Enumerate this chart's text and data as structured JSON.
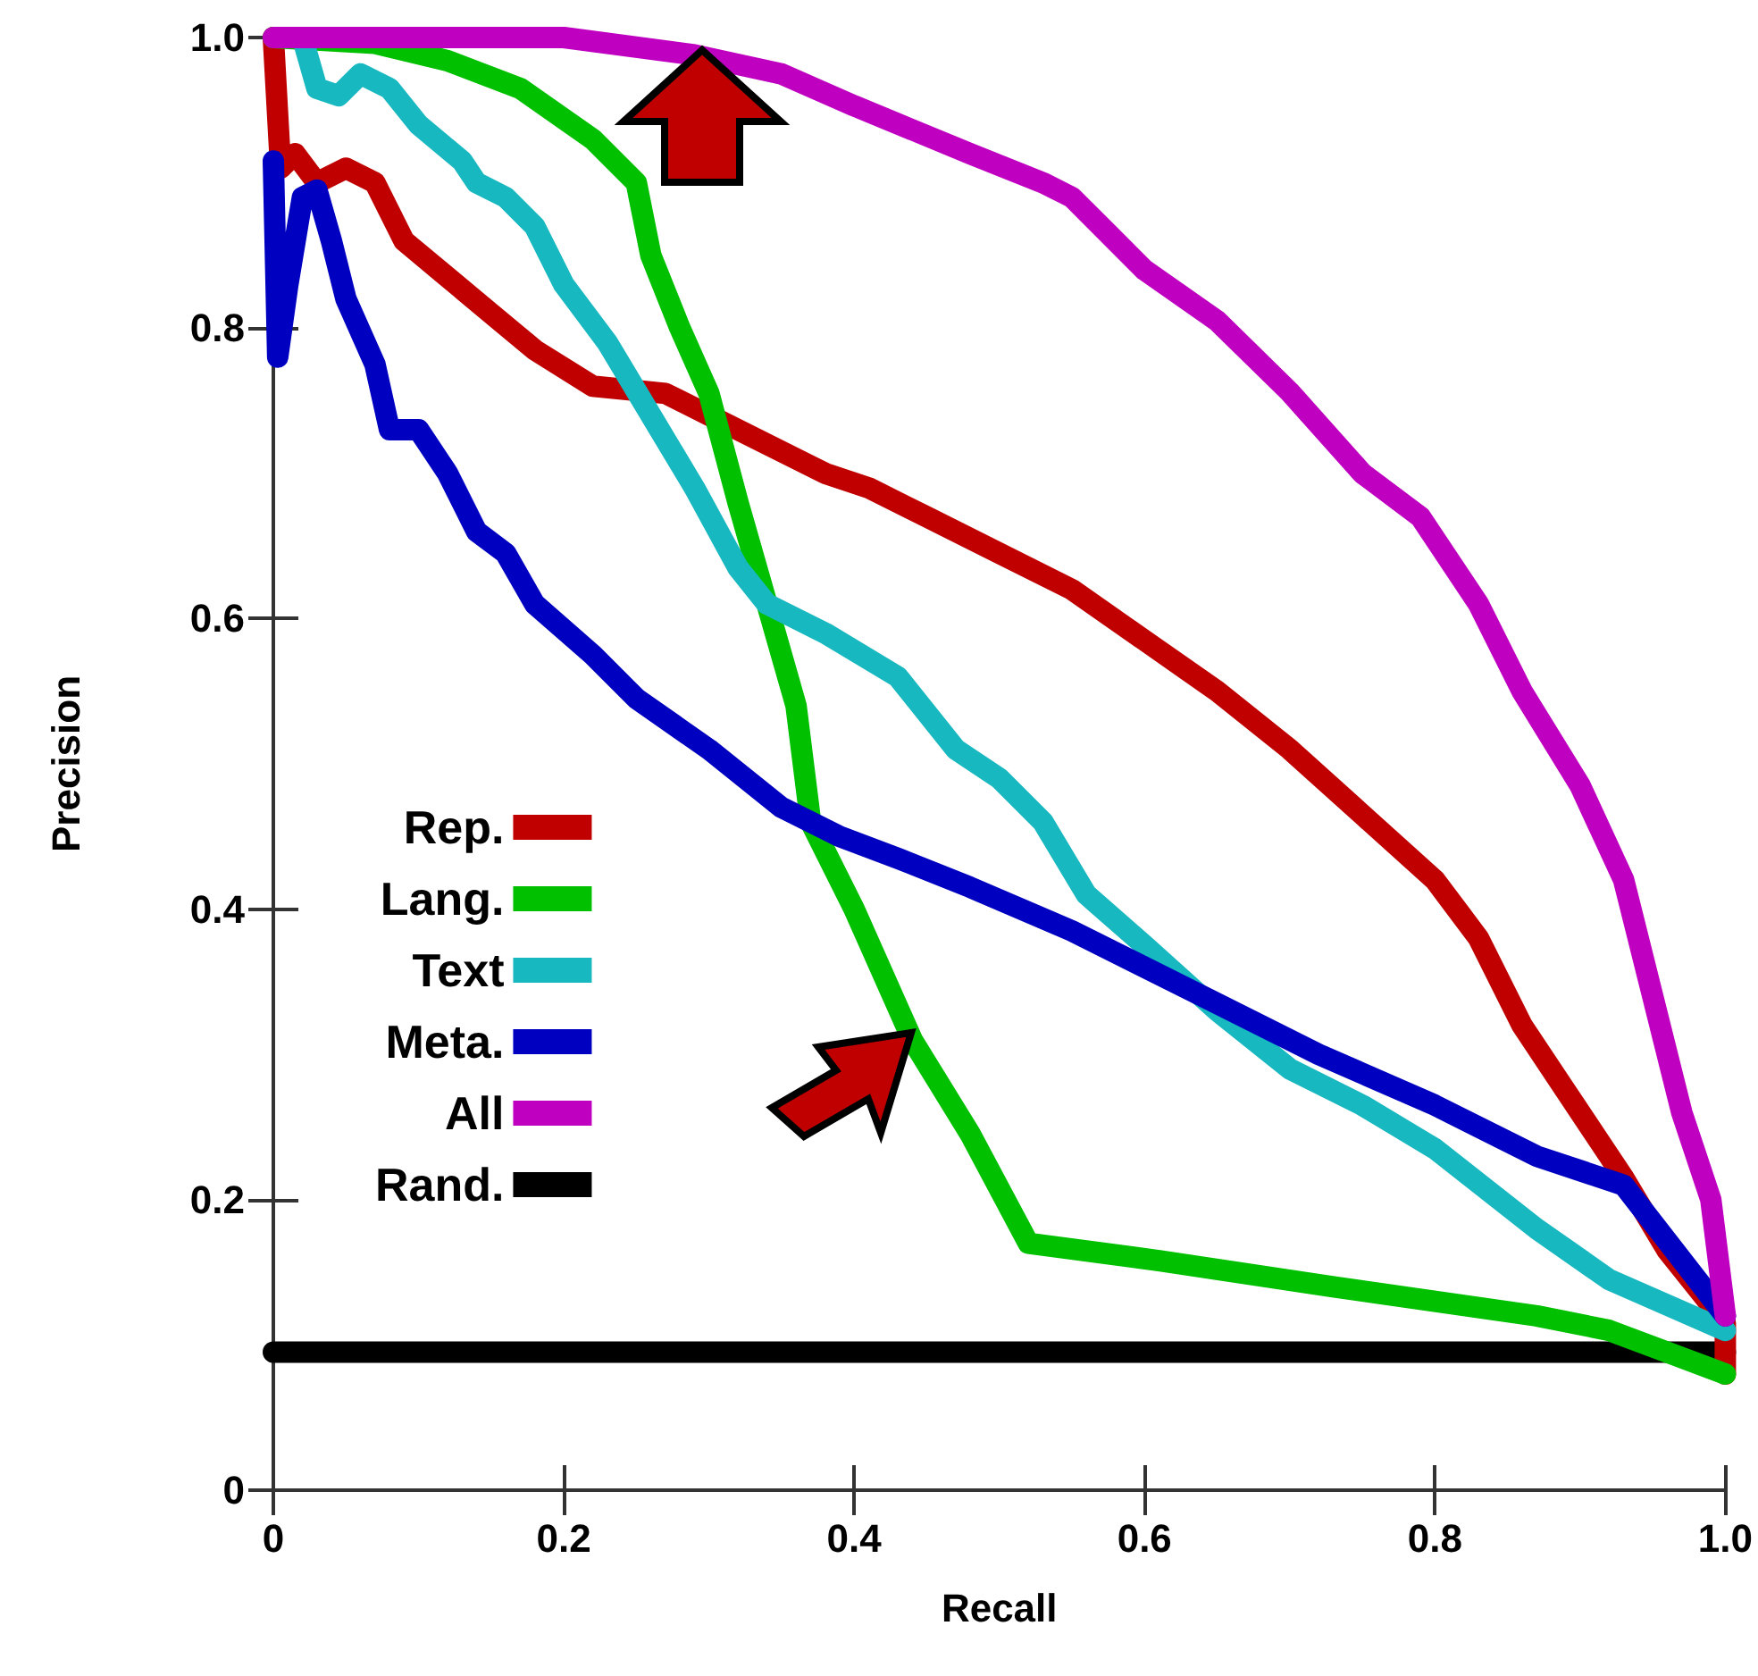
{
  "chart_data": {
    "type": "line",
    "xlabel": "Recall",
    "ylabel": "Precision",
    "xlim": [
      0,
      1
    ],
    "ylim": [
      0,
      1
    ],
    "xticks": [
      0,
      0.2,
      0.4,
      0.6,
      0.8,
      {
        "value": 1,
        "label": "1.0"
      }
    ],
    "yticks": [
      0,
      0.2,
      0.4,
      0.6,
      0.8,
      {
        "value": 1,
        "label": "1.0"
      }
    ],
    "grid": false,
    "legend": "bottom left",
    "marker": "none",
    "line_style": "solid",
    "series": [
      {
        "name": "Rep.",
        "color": "#c00000",
        "x": [
          0,
          0.005,
          0.015,
          0.03,
          0.05,
          0.07,
          0.09,
          0.12,
          0.15,
          0.18,
          0.22,
          0.27,
          0.3,
          0.38,
          0.41,
          0.45,
          0.5,
          0.55,
          0.6,
          0.65,
          0.7,
          0.75,
          0.8,
          0.83,
          0.86,
          0.89,
          0.93,
          0.96,
          1.0,
          1.0
        ],
        "values": [
          1.0,
          0.91,
          0.92,
          0.9,
          0.91,
          0.9,
          0.86,
          0.835,
          0.81,
          0.785,
          0.76,
          0.755,
          0.74,
          0.7,
          0.69,
          0.67,
          0.645,
          0.62,
          0.585,
          0.55,
          0.51,
          0.465,
          0.42,
          0.38,
          0.32,
          0.275,
          0.215,
          0.165,
          0.115,
          0.08
        ]
      },
      {
        "name": "Lang.",
        "color": "#00c000",
        "x": [
          0,
          0.07,
          0.12,
          0.17,
          0.22,
          0.25,
          0.26,
          0.28,
          0.3,
          0.32,
          0.34,
          0.36,
          0.37,
          0.4,
          0.44,
          0.48,
          0.52,
          0.61,
          0.73,
          0.87,
          0.92,
          1.0
        ],
        "values": [
          1.0,
          0.996,
          0.984,
          0.965,
          0.93,
          0.9,
          0.85,
          0.8,
          0.755,
          0.68,
          0.61,
          0.54,
          0.46,
          0.4,
          0.31,
          0.245,
          0.17,
          0.158,
          0.14,
          0.12,
          0.11,
          0.08
        ]
      },
      {
        "name": "Text",
        "color": "#17b8c0",
        "x": [
          0.02,
          0.03,
          0.045,
          0.06,
          0.08,
          0.1,
          0.13,
          0.14,
          0.16,
          0.18,
          0.2,
          0.23,
          0.26,
          0.29,
          0.32,
          0.34,
          0.38,
          0.43,
          0.47,
          0.5,
          0.53,
          0.56,
          0.6,
          0.65,
          0.7,
          0.75,
          0.8,
          0.87,
          0.92,
          1.0
        ],
        "values": [
          1.0,
          0.965,
          0.96,
          0.975,
          0.965,
          0.94,
          0.915,
          0.9,
          0.89,
          0.87,
          0.83,
          0.79,
          0.74,
          0.69,
          0.635,
          0.61,
          0.59,
          0.56,
          0.51,
          0.49,
          0.46,
          0.41,
          0.375,
          0.33,
          0.29,
          0.265,
          0.235,
          0.18,
          0.145,
          0.11
        ]
      },
      {
        "name": "Meta.",
        "color": "#0000c0",
        "x": [
          0,
          0.003,
          0.01,
          0.02,
          0.03,
          0.04,
          0.05,
          0.07,
          0.08,
          0.1,
          0.12,
          0.14,
          0.16,
          0.18,
          0.22,
          0.25,
          0.3,
          0.35,
          0.39,
          0.43,
          0.48,
          0.55,
          0.65,
          0.72,
          0.8,
          0.87,
          0.93,
          1.0
        ],
        "values": [
          0.915,
          0.78,
          0.83,
          0.89,
          0.895,
          0.86,
          0.82,
          0.775,
          0.73,
          0.73,
          0.7,
          0.66,
          0.645,
          0.61,
          0.575,
          0.545,
          0.51,
          0.47,
          0.45,
          0.435,
          0.415,
          0.385,
          0.335,
          0.3,
          0.265,
          0.23,
          0.21,
          0.12
        ]
      },
      {
        "name": "All",
        "color": "#c000c0",
        "x": [
          0,
          0.2,
          0.29,
          0.35,
          0.4,
          0.48,
          0.53,
          0.55,
          0.6,
          0.65,
          0.7,
          0.75,
          0.79,
          0.83,
          0.86,
          0.9,
          0.93,
          0.95,
          0.97,
          0.99,
          1.0
        ],
        "values": [
          1.0,
          1.0,
          0.988,
          0.975,
          0.953,
          0.92,
          0.9,
          0.89,
          0.84,
          0.805,
          0.756,
          0.7,
          0.67,
          0.61,
          0.55,
          0.485,
          0.42,
          0.34,
          0.26,
          0.2,
          0.12
        ]
      },
      {
        "name": "Rand.",
        "color": "#000000",
        "x": [
          0,
          1.0
        ],
        "values": [
          0.095,
          0.095
        ]
      }
    ]
  }
}
